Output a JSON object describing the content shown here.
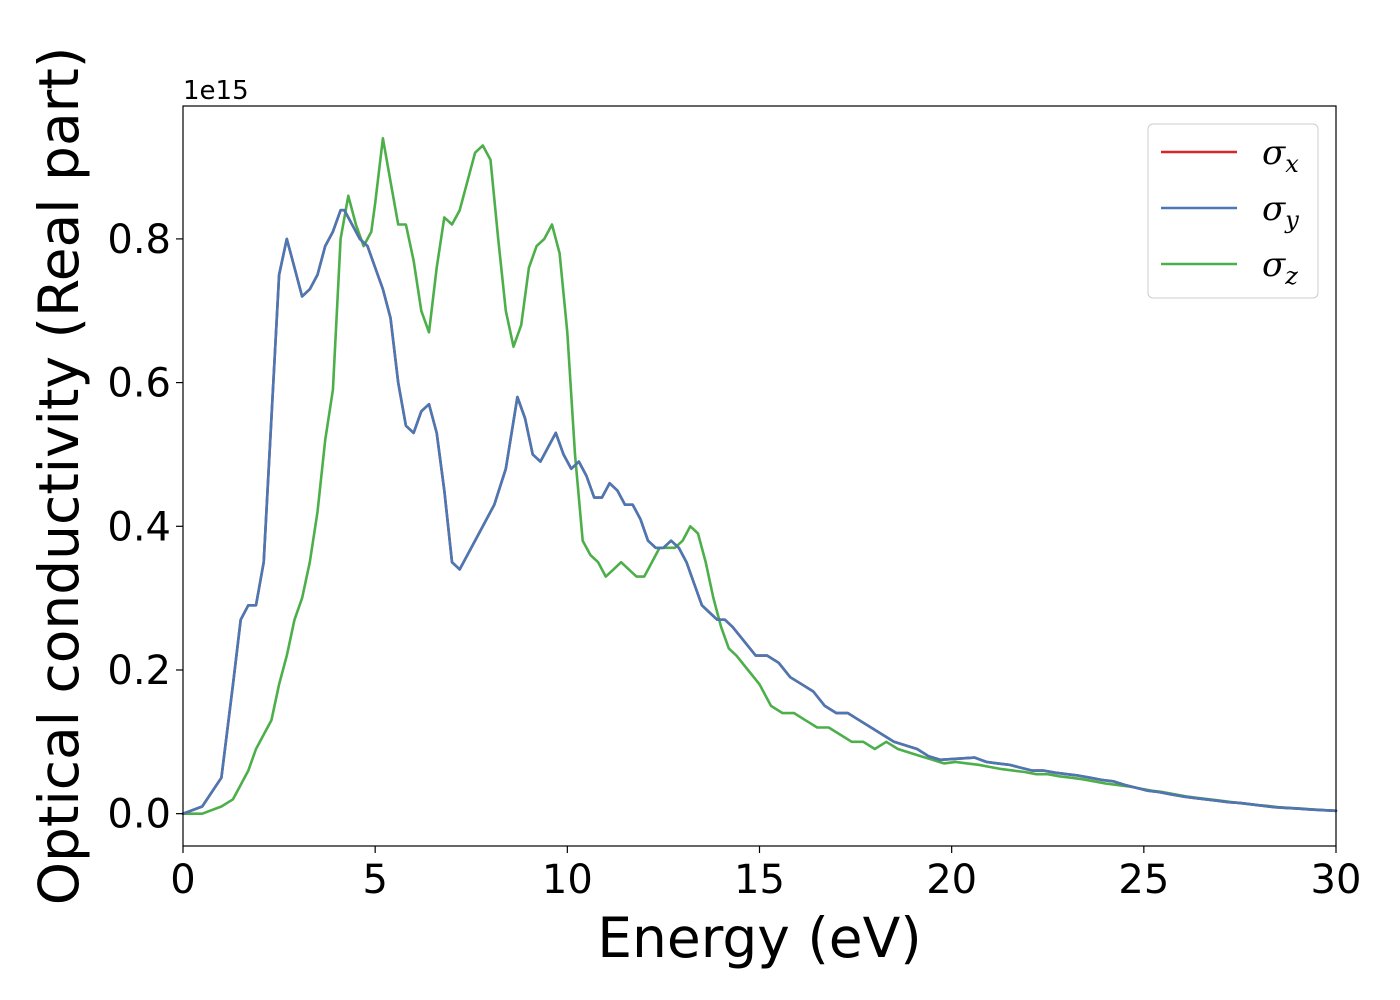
{
  "chart_data": {
    "type": "line",
    "xlabel": "Energy (eV)",
    "ylabel": "Optical conductivity (Real part)",
    "y_offset_text": "1e15",
    "xlim": [
      0,
      30
    ],
    "ylim": [
      -0.045,
      0.985
    ],
    "y_scale_note": "values in units of 1e15",
    "xticks": [
      0,
      5,
      10,
      15,
      20,
      25,
      30
    ],
    "xtick_labels": [
      "0",
      "5",
      "10",
      "15",
      "20",
      "25",
      "30"
    ],
    "yticks": [
      0.0,
      0.2,
      0.4,
      0.6,
      0.8
    ],
    "ytick_labels": [
      "0.0",
      "0.2",
      "0.4",
      "0.6",
      "0.8"
    ],
    "grid": false,
    "legend_position": "top-right",
    "series": [
      {
        "name": "σx",
        "symbol": "σ",
        "subscript": "x",
        "color": "#d62728",
        "x": [
          0,
          0.5,
          1,
          1.3,
          1.5,
          1.7,
          1.9,
          2.1,
          2.3,
          2.5,
          2.7,
          2.9,
          3.1,
          3.3,
          3.5,
          3.7,
          3.9,
          4.1,
          4.2,
          4.4,
          4.6,
          4.8,
          5.0,
          5.2,
          5.4,
          5.6,
          5.8,
          6.0,
          6.2,
          6.4,
          6.6,
          6.8,
          7.0,
          7.2,
          7.5,
          7.8,
          8.1,
          8.4,
          8.7,
          8.9,
          9.1,
          9.3,
          9.5,
          9.7,
          9.9,
          10.1,
          10.3,
          10.5,
          10.7,
          10.9,
          11.1,
          11.3,
          11.5,
          11.7,
          11.9,
          12.1,
          12.3,
          12.5,
          12.7,
          12.9,
          13.1,
          13.3,
          13.5,
          13.7,
          13.9,
          14.1,
          14.3,
          14.6,
          14.9,
          15.2,
          15.5,
          15.8,
          16.1,
          16.4,
          16.7,
          17.0,
          17.3,
          17.6,
          17.9,
          18.2,
          18.5,
          18.8,
          19.1,
          19.4,
          19.7,
          20.0,
          20.3,
          20.6,
          20.9,
          21.2,
          21.5,
          21.8,
          22.1,
          22.4,
          22.7,
          23.0,
          23.3,
          23.6,
          23.9,
          24.2,
          24.5,
          24.8,
          25.1,
          25.4,
          25.7,
          26.0,
          26.3,
          26.6,
          26.9,
          27.2,
          27.5,
          27.8,
          28.1,
          28.4,
          28.7,
          29.0,
          29.3,
          29.6,
          30.0
        ],
        "y": [
          0.0,
          0.01,
          0.05,
          0.18,
          0.27,
          0.29,
          0.29,
          0.35,
          0.55,
          0.75,
          0.8,
          0.76,
          0.72,
          0.73,
          0.75,
          0.79,
          0.81,
          0.84,
          0.84,
          0.82,
          0.8,
          0.79,
          0.76,
          0.73,
          0.69,
          0.6,
          0.54,
          0.53,
          0.56,
          0.57,
          0.53,
          0.45,
          0.35,
          0.34,
          0.37,
          0.4,
          0.43,
          0.48,
          0.58,
          0.55,
          0.5,
          0.49,
          0.51,
          0.53,
          0.5,
          0.48,
          0.49,
          0.47,
          0.44,
          0.44,
          0.46,
          0.45,
          0.43,
          0.43,
          0.41,
          0.38,
          0.37,
          0.37,
          0.38,
          0.37,
          0.35,
          0.32,
          0.29,
          0.28,
          0.27,
          0.27,
          0.26,
          0.24,
          0.22,
          0.22,
          0.21,
          0.19,
          0.18,
          0.17,
          0.15,
          0.14,
          0.14,
          0.13,
          0.12,
          0.11,
          0.1,
          0.095,
          0.09,
          0.08,
          0.075,
          0.076,
          0.077,
          0.078,
          0.072,
          0.07,
          0.068,
          0.064,
          0.06,
          0.06,
          0.057,
          0.055,
          0.053,
          0.05,
          0.047,
          0.045,
          0.04,
          0.036,
          0.032,
          0.03,
          0.027,
          0.024,
          0.022,
          0.02,
          0.018,
          0.016,
          0.015,
          0.013,
          0.011,
          0.009,
          0.008,
          0.007,
          0.006,
          0.005,
          0.004
        ]
      },
      {
        "name": "σy",
        "symbol": "σ",
        "subscript": "y",
        "color": "#4a78b4",
        "x": [
          0,
          0.5,
          1,
          1.3,
          1.5,
          1.7,
          1.9,
          2.1,
          2.3,
          2.5,
          2.7,
          2.9,
          3.1,
          3.3,
          3.5,
          3.7,
          3.9,
          4.1,
          4.2,
          4.4,
          4.6,
          4.8,
          5.0,
          5.2,
          5.4,
          5.6,
          5.8,
          6.0,
          6.2,
          6.4,
          6.6,
          6.8,
          7.0,
          7.2,
          7.5,
          7.8,
          8.1,
          8.4,
          8.7,
          8.9,
          9.1,
          9.3,
          9.5,
          9.7,
          9.9,
          10.1,
          10.3,
          10.5,
          10.7,
          10.9,
          11.1,
          11.3,
          11.5,
          11.7,
          11.9,
          12.1,
          12.3,
          12.5,
          12.7,
          12.9,
          13.1,
          13.3,
          13.5,
          13.7,
          13.9,
          14.1,
          14.3,
          14.6,
          14.9,
          15.2,
          15.5,
          15.8,
          16.1,
          16.4,
          16.7,
          17.0,
          17.3,
          17.6,
          17.9,
          18.2,
          18.5,
          18.8,
          19.1,
          19.4,
          19.7,
          20.0,
          20.3,
          20.6,
          20.9,
          21.2,
          21.5,
          21.8,
          22.1,
          22.4,
          22.7,
          23.0,
          23.3,
          23.6,
          23.9,
          24.2,
          24.5,
          24.8,
          25.1,
          25.4,
          25.7,
          26.0,
          26.3,
          26.6,
          26.9,
          27.2,
          27.5,
          27.8,
          28.1,
          28.4,
          28.7,
          29.0,
          29.3,
          29.6,
          30.0
        ],
        "y": [
          0.0,
          0.01,
          0.05,
          0.18,
          0.27,
          0.29,
          0.29,
          0.35,
          0.55,
          0.75,
          0.8,
          0.76,
          0.72,
          0.73,
          0.75,
          0.79,
          0.81,
          0.84,
          0.84,
          0.82,
          0.8,
          0.79,
          0.76,
          0.73,
          0.69,
          0.6,
          0.54,
          0.53,
          0.56,
          0.57,
          0.53,
          0.45,
          0.35,
          0.34,
          0.37,
          0.4,
          0.43,
          0.48,
          0.58,
          0.55,
          0.5,
          0.49,
          0.51,
          0.53,
          0.5,
          0.48,
          0.49,
          0.47,
          0.44,
          0.44,
          0.46,
          0.45,
          0.43,
          0.43,
          0.41,
          0.38,
          0.37,
          0.37,
          0.38,
          0.37,
          0.35,
          0.32,
          0.29,
          0.28,
          0.27,
          0.27,
          0.26,
          0.24,
          0.22,
          0.22,
          0.21,
          0.19,
          0.18,
          0.17,
          0.15,
          0.14,
          0.14,
          0.13,
          0.12,
          0.11,
          0.1,
          0.095,
          0.09,
          0.08,
          0.075,
          0.076,
          0.077,
          0.078,
          0.072,
          0.07,
          0.068,
          0.064,
          0.06,
          0.06,
          0.057,
          0.055,
          0.053,
          0.05,
          0.047,
          0.045,
          0.04,
          0.036,
          0.032,
          0.03,
          0.027,
          0.024,
          0.022,
          0.02,
          0.018,
          0.016,
          0.015,
          0.013,
          0.011,
          0.009,
          0.008,
          0.007,
          0.006,
          0.005,
          0.004
        ]
      },
      {
        "name": "σz",
        "symbol": "σ",
        "subscript": "z",
        "color": "#4daf4a",
        "x": [
          0,
          0.5,
          1,
          1.3,
          1.5,
          1.7,
          1.9,
          2.1,
          2.3,
          2.5,
          2.7,
          2.9,
          3.1,
          3.3,
          3.5,
          3.7,
          3.9,
          4.1,
          4.3,
          4.5,
          4.7,
          4.9,
          5.0,
          5.2,
          5.4,
          5.6,
          5.8,
          6.0,
          6.2,
          6.4,
          6.6,
          6.8,
          7.0,
          7.2,
          7.4,
          7.6,
          7.8,
          8.0,
          8.2,
          8.4,
          8.6,
          8.8,
          9.0,
          9.2,
          9.4,
          9.6,
          9.8,
          10.0,
          10.2,
          10.4,
          10.6,
          10.8,
          11.0,
          11.2,
          11.4,
          11.6,
          11.8,
          12.0,
          12.2,
          12.4,
          12.6,
          12.8,
          13.0,
          13.2,
          13.4,
          13.6,
          13.8,
          14.0,
          14.2,
          14.4,
          14.7,
          15.0,
          15.3,
          15.6,
          15.9,
          16.2,
          16.5,
          16.8,
          17.1,
          17.4,
          17.7,
          18.0,
          18.3,
          18.6,
          18.9,
          19.2,
          19.5,
          19.8,
          20.1,
          20.4,
          20.7,
          21.0,
          21.3,
          21.6,
          21.9,
          22.2,
          22.5,
          22.8,
          23.1,
          23.4,
          23.7,
          24.0,
          24.3,
          24.6,
          24.9,
          25.2,
          25.5,
          25.8,
          26.1,
          26.4,
          26.7,
          27.0,
          27.3,
          27.6,
          27.9,
          28.2,
          28.5,
          28.8,
          29.1,
          29.4,
          30.0
        ],
        "y": [
          0.0,
          0.0,
          0.01,
          0.02,
          0.04,
          0.06,
          0.09,
          0.11,
          0.13,
          0.18,
          0.22,
          0.27,
          0.3,
          0.35,
          0.42,
          0.52,
          0.59,
          0.8,
          0.86,
          0.82,
          0.79,
          0.81,
          0.85,
          0.94,
          0.88,
          0.82,
          0.82,
          0.77,
          0.7,
          0.67,
          0.76,
          0.83,
          0.82,
          0.84,
          0.88,
          0.92,
          0.93,
          0.91,
          0.8,
          0.7,
          0.65,
          0.68,
          0.76,
          0.79,
          0.8,
          0.82,
          0.78,
          0.67,
          0.5,
          0.38,
          0.36,
          0.35,
          0.33,
          0.34,
          0.35,
          0.34,
          0.33,
          0.33,
          0.35,
          0.37,
          0.37,
          0.37,
          0.38,
          0.4,
          0.39,
          0.35,
          0.3,
          0.26,
          0.23,
          0.22,
          0.2,
          0.18,
          0.15,
          0.14,
          0.14,
          0.13,
          0.12,
          0.12,
          0.11,
          0.1,
          0.1,
          0.09,
          0.1,
          0.09,
          0.085,
          0.08,
          0.075,
          0.07,
          0.072,
          0.07,
          0.068,
          0.065,
          0.062,
          0.06,
          0.058,
          0.055,
          0.055,
          0.052,
          0.05,
          0.048,
          0.045,
          0.042,
          0.04,
          0.038,
          0.035,
          0.032,
          0.03,
          0.027,
          0.024,
          0.022,
          0.02,
          0.018,
          0.016,
          0.014,
          0.012,
          0.011,
          0.009,
          0.008,
          0.007,
          0.006,
          0.004
        ]
      }
    ]
  }
}
